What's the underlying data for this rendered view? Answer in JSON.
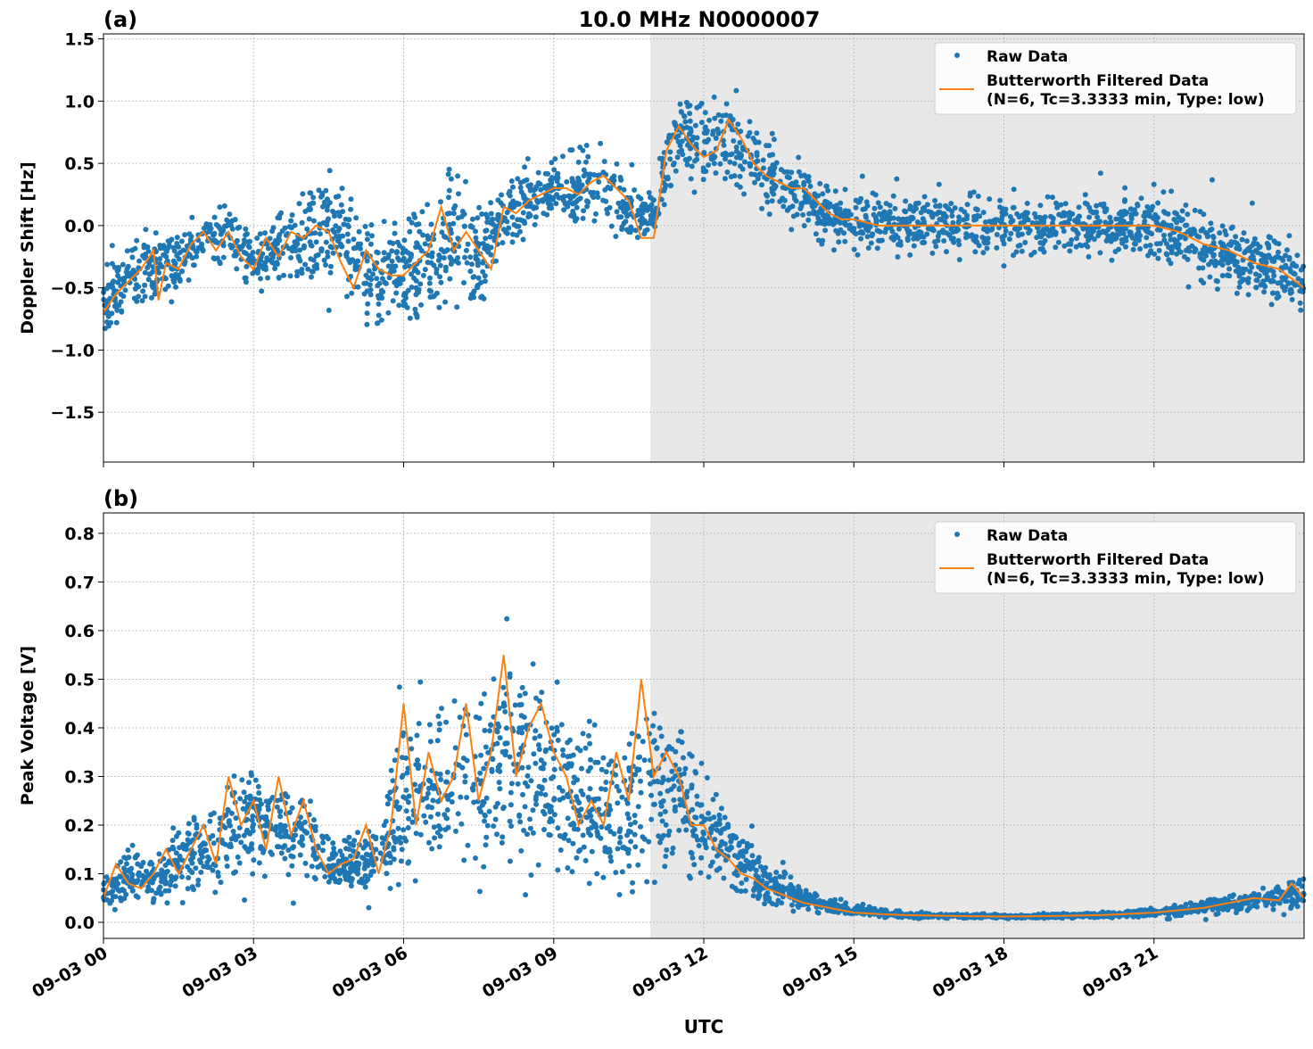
{
  "figure_title": "10.0 MHz N0000007",
  "xlabel": "UTC",
  "x_tick_labels": [
    "09-03 00",
    "09-03 03",
    "09-03 06",
    "09-03 09",
    "09-03 12",
    "09-03 15",
    "09-03 18",
    "09-03 21"
  ],
  "colors": {
    "raw": "#1f77b4",
    "filtered": "#ff7f0e",
    "shade": "#e8e8e8"
  },
  "chart_data": [
    {
      "type": "scatter",
      "panel_label": "(a)",
      "ylabel": "Doppler Shift [Hz]",
      "xlim_hours_utc": [
        0,
        24
      ],
      "ylim": [
        -1.9,
        1.54
      ],
      "y_ticks": [
        -1.5,
        -1.0,
        -0.5,
        0.0,
        0.5,
        1.0,
        1.5
      ],
      "y_tick_labels": [
        "−1.5",
        "−1.0",
        "−0.5",
        "0.0",
        "0.5",
        "1.0",
        "1.5"
      ],
      "grid": true,
      "legend_placement": "top-right",
      "shaded_region_hours": [
        10.93,
        24
      ],
      "series": [
        {
          "name": "Raw Data",
          "kind": "points",
          "hours": [
            0,
            0.5,
            1,
            1.5,
            2,
            2.5,
            3,
            3.5,
            4,
            4.5,
            5,
            5.5,
            6,
            6.5,
            7,
            7.5,
            8,
            8.5,
            9,
            9.5,
            10,
            10.5,
            11,
            11.5,
            12,
            12.5,
            13,
            13.5,
            14,
            14.5,
            15,
            16,
            17,
            18,
            19,
            20,
            21,
            22,
            23,
            24
          ],
          "center": [
            -0.6,
            -0.45,
            -0.35,
            -0.3,
            -0.1,
            -0.05,
            -0.3,
            -0.2,
            -0.15,
            0.0,
            -0.3,
            -0.35,
            -0.35,
            -0.3,
            -0.15,
            -0.25,
            0.1,
            0.2,
            0.3,
            0.3,
            0.35,
            0.1,
            0.1,
            0.75,
            0.6,
            0.75,
            0.5,
            0.3,
            0.25,
            0.1,
            0.05,
            0.0,
            0.0,
            0.0,
            0.0,
            0.0,
            0.0,
            -0.15,
            -0.3,
            -0.45
          ],
          "spread": [
            0.35,
            0.35,
            0.4,
            0.35,
            0.3,
            0.3,
            0.35,
            0.4,
            0.55,
            0.6,
            0.65,
            0.55,
            0.5,
            0.6,
            0.7,
            0.6,
            0.35,
            0.35,
            0.3,
            0.4,
            0.55,
            0.3,
            0.3,
            0.4,
            0.45,
            0.5,
            0.4,
            0.35,
            0.35,
            0.35,
            0.3,
            0.3,
            0.3,
            0.3,
            0.3,
            0.3,
            0.35,
            0.4,
            0.4,
            0.4
          ]
        },
        {
          "name": "Butterworth Filtered Data\n(N=6, Tc=3.3333 min, Type: low)",
          "kind": "line",
          "hours": [
            0,
            0.25,
            0.5,
            0.75,
            1,
            1.1,
            1.25,
            1.5,
            1.75,
            2,
            2.25,
            2.5,
            2.75,
            3,
            3.25,
            3.5,
            3.75,
            4,
            4.25,
            4.5,
            4.75,
            5,
            5.25,
            5.5,
            5.75,
            6,
            6.25,
            6.5,
            6.75,
            7,
            7.25,
            7.5,
            7.75,
            8,
            8.25,
            8.5,
            8.75,
            9,
            9.25,
            9.5,
            9.75,
            10,
            10.25,
            10.5,
            10.75,
            11,
            11.25,
            11.5,
            11.75,
            12,
            12.25,
            12.5,
            12.75,
            13,
            13.25,
            13.5,
            13.75,
            14,
            14.25,
            14.5,
            14.75,
            15,
            15.5,
            16,
            17,
            18,
            19,
            20,
            21,
            21.5,
            22,
            22.5,
            23,
            23.5,
            24
          ],
          "values": [
            -0.7,
            -0.55,
            -0.45,
            -0.35,
            -0.2,
            -0.6,
            -0.3,
            -0.35,
            -0.15,
            -0.05,
            -0.2,
            -0.05,
            -0.25,
            -0.35,
            -0.1,
            -0.25,
            -0.05,
            -0.1,
            0.0,
            -0.05,
            -0.3,
            -0.5,
            -0.2,
            -0.35,
            -0.4,
            -0.4,
            -0.3,
            -0.2,
            0.15,
            -0.2,
            -0.05,
            -0.2,
            -0.35,
            0.15,
            0.1,
            0.2,
            0.25,
            0.3,
            0.3,
            0.25,
            0.35,
            0.4,
            0.3,
            0.2,
            -0.1,
            -0.1,
            0.6,
            0.8,
            0.65,
            0.55,
            0.6,
            0.85,
            0.7,
            0.5,
            0.4,
            0.35,
            0.3,
            0.3,
            0.2,
            0.1,
            0.05,
            0.05,
            0.0,
            0.0,
            0.0,
            0.0,
            0.0,
            0.0,
            0.0,
            -0.05,
            -0.15,
            -0.2,
            -0.3,
            -0.35,
            -0.5
          ]
        }
      ]
    },
    {
      "type": "scatter",
      "panel_label": "(b)",
      "ylabel": "Peak Voltage [V]",
      "xlim_hours_utc": [
        0,
        24
      ],
      "ylim": [
        -0.033,
        0.842
      ],
      "y_ticks": [
        0.0,
        0.1,
        0.2,
        0.3,
        0.4,
        0.5,
        0.6,
        0.7,
        0.8
      ],
      "y_tick_labels": [
        "0.0",
        "0.1",
        "0.2",
        "0.3",
        "0.4",
        "0.5",
        "0.6",
        "0.7",
        "0.8"
      ],
      "grid": true,
      "legend_placement": "top-right",
      "shaded_region_hours": [
        10.93,
        24
      ],
      "series": [
        {
          "name": "Raw Data",
          "kind": "points",
          "hours": [
            0,
            0.5,
            1,
            1.5,
            2,
            2.5,
            3,
            3.5,
            4,
            4.5,
            5,
            5.5,
            6,
            6.5,
            7,
            7.5,
            8,
            8.5,
            9,
            9.5,
            10,
            10.5,
            11,
            11.5,
            12,
            12.5,
            13,
            13.5,
            14,
            14.5,
            15,
            16,
            17,
            18,
            19,
            20,
            21,
            22,
            23,
            24
          ],
          "center": [
            0.06,
            0.1,
            0.08,
            0.12,
            0.15,
            0.18,
            0.2,
            0.2,
            0.18,
            0.12,
            0.12,
            0.13,
            0.25,
            0.28,
            0.3,
            0.3,
            0.33,
            0.33,
            0.3,
            0.25,
            0.22,
            0.25,
            0.3,
            0.27,
            0.2,
            0.15,
            0.1,
            0.07,
            0.05,
            0.03,
            0.025,
            0.015,
            0.013,
            0.012,
            0.013,
            0.015,
            0.02,
            0.03,
            0.045,
            0.06
          ],
          "spread": [
            0.04,
            0.08,
            0.06,
            0.1,
            0.12,
            0.15,
            0.15,
            0.12,
            0.12,
            0.08,
            0.08,
            0.1,
            0.22,
            0.22,
            0.25,
            0.26,
            0.25,
            0.25,
            0.25,
            0.2,
            0.2,
            0.25,
            0.25,
            0.2,
            0.15,
            0.12,
            0.08,
            0.05,
            0.03,
            0.02,
            0.015,
            0.008,
            0.006,
            0.005,
            0.006,
            0.008,
            0.012,
            0.025,
            0.035,
            0.05
          ]
        },
        {
          "name": "Butterworth Filtered Data\n(N=6, Tc=3.3333 min, Type: low)",
          "kind": "line",
          "hours": [
            0,
            0.25,
            0.5,
            0.75,
            1,
            1.25,
            1.5,
            1.75,
            2,
            2.25,
            2.5,
            2.75,
            3,
            3.25,
            3.5,
            3.75,
            4,
            4.25,
            4.5,
            4.75,
            5,
            5.25,
            5.5,
            5.75,
            6,
            6.25,
            6.5,
            6.75,
            7,
            7.25,
            7.5,
            7.75,
            8,
            8.25,
            8.5,
            8.75,
            9,
            9.25,
            9.5,
            9.75,
            10,
            10.25,
            10.5,
            10.75,
            11,
            11.25,
            11.5,
            11.75,
            12,
            12.25,
            12.5,
            12.75,
            13,
            13.25,
            13.5,
            13.75,
            14,
            14.5,
            15,
            15.5,
            16,
            17,
            18,
            19,
            20,
            21,
            21.5,
            22,
            22.5,
            23,
            23.5,
            23.75,
            24
          ],
          "values": [
            0.05,
            0.12,
            0.08,
            0.07,
            0.1,
            0.15,
            0.1,
            0.15,
            0.2,
            0.12,
            0.3,
            0.2,
            0.25,
            0.15,
            0.3,
            0.18,
            0.25,
            0.15,
            0.1,
            0.12,
            0.13,
            0.2,
            0.1,
            0.2,
            0.45,
            0.2,
            0.35,
            0.25,
            0.3,
            0.45,
            0.25,
            0.35,
            0.55,
            0.3,
            0.4,
            0.45,
            0.35,
            0.3,
            0.2,
            0.25,
            0.2,
            0.35,
            0.25,
            0.5,
            0.3,
            0.35,
            0.3,
            0.2,
            0.2,
            0.15,
            0.13,
            0.1,
            0.09,
            0.07,
            0.06,
            0.05,
            0.04,
            0.03,
            0.02,
            0.017,
            0.015,
            0.013,
            0.012,
            0.013,
            0.015,
            0.02,
            0.025,
            0.03,
            0.04,
            0.05,
            0.045,
            0.08,
            0.05
          ]
        }
      ]
    }
  ]
}
